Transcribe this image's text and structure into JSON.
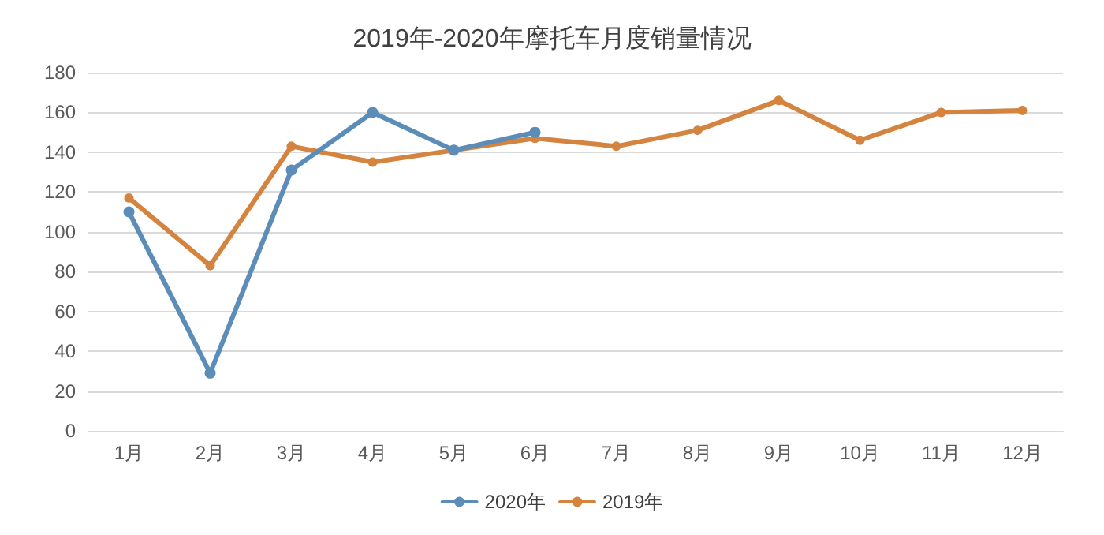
{
  "chart_data": {
    "type": "line",
    "title": "2019年-2020年摩托车月度销量情况",
    "categories": [
      "1月",
      "2月",
      "3月",
      "4月",
      "5月",
      "6月",
      "7月",
      "8月",
      "9月",
      "10月",
      "11月",
      "12月"
    ],
    "series": [
      {
        "name": "2020年",
        "color": "#5b8db8",
        "values": [
          110,
          29,
          131,
          160,
          141,
          150,
          null,
          null,
          null,
          null,
          null,
          null
        ]
      },
      {
        "name": "2019年",
        "color": "#d4843e",
        "values": [
          117,
          83,
          143,
          135,
          141,
          147,
          143,
          151,
          166,
          146,
          160,
          161
        ]
      }
    ],
    "ylim": [
      0,
      180
    ],
    "yticks": [
      0,
      20,
      40,
      60,
      80,
      100,
      120,
      140,
      160,
      180
    ],
    "grid": "y",
    "legend": "bottom",
    "marker": "circle",
    "line_style": "solid"
  }
}
